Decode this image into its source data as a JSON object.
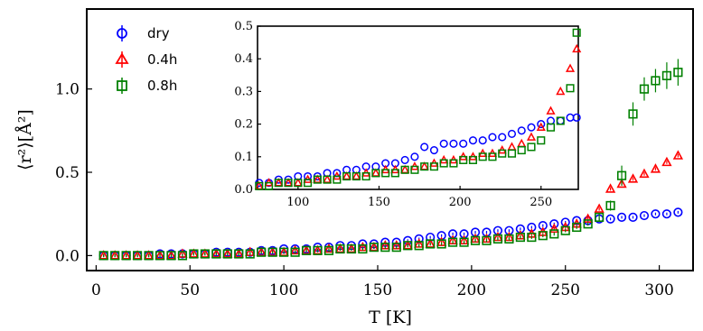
{
  "chart_data": [
    {
      "type": "scatter",
      "xlabel": "T [K]",
      "ylabel": "⟨r²⟩[Å²]",
      "xlim": [
        -5,
        318
      ],
      "ylim": [
        -0.09,
        1.48
      ],
      "xticks": [
        0,
        50,
        100,
        150,
        200,
        250,
        300
      ],
      "yticks": [
        0.0,
        0.5,
        1.0
      ],
      "ytick_labels": [
        "0.0",
        "0.5",
        "1.0"
      ],
      "legend": {
        "placement": "top-left",
        "entries": [
          "dry",
          "0.4h",
          "0.8h"
        ]
      },
      "series": [
        {
          "name": "dry",
          "marker": "circle",
          "color": "#0000ff",
          "x": [
            4,
            10,
            16,
            22,
            28,
            34,
            40,
            46,
            52,
            58,
            64,
            70,
            76,
            82,
            88,
            94,
            100,
            106,
            112,
            118,
            124,
            130,
            136,
            142,
            148,
            154,
            160,
            166,
            172,
            178,
            184,
            190,
            196,
            202,
            208,
            214,
            220,
            226,
            232,
            238,
            244,
            250,
            256,
            262,
            268,
            274,
            280,
            286,
            292,
            298,
            304,
            310
          ],
          "y": [
            0.0,
            0.0,
            0.0,
            0.0,
            0.0,
            0.01,
            0.01,
            0.01,
            0.01,
            0.01,
            0.02,
            0.02,
            0.02,
            0.02,
            0.03,
            0.03,
            0.04,
            0.04,
            0.04,
            0.05,
            0.05,
            0.06,
            0.06,
            0.07,
            0.07,
            0.08,
            0.08,
            0.09,
            0.1,
            0.11,
            0.12,
            0.13,
            0.13,
            0.14,
            0.14,
            0.15,
            0.15,
            0.16,
            0.17,
            0.18,
            0.19,
            0.2,
            0.21,
            0.21,
            0.22,
            0.22,
            0.23,
            0.23,
            0.24,
            0.25,
            0.25,
            0.26
          ],
          "yerr": 0.008
        },
        {
          "name": "0.4h",
          "marker": "triangle",
          "color": "#ff0000",
          "x": [
            4,
            10,
            16,
            22,
            28,
            34,
            40,
            46,
            52,
            58,
            64,
            70,
            76,
            82,
            88,
            94,
            100,
            106,
            112,
            118,
            124,
            130,
            136,
            142,
            148,
            154,
            160,
            166,
            172,
            178,
            184,
            190,
            196,
            202,
            208,
            214,
            220,
            226,
            232,
            238,
            244,
            250,
            256,
            262,
            268,
            274,
            280,
            286,
            292,
            298,
            304,
            310
          ],
          "y": [
            0.0,
            0.0,
            0.0,
            0.0,
            0.0,
            0.0,
            0.0,
            0.01,
            0.01,
            0.01,
            0.01,
            0.01,
            0.01,
            0.02,
            0.02,
            0.02,
            0.02,
            0.03,
            0.03,
            0.03,
            0.04,
            0.04,
            0.04,
            0.05,
            0.05,
            0.06,
            0.06,
            0.06,
            0.07,
            0.07,
            0.08,
            0.09,
            0.09,
            0.1,
            0.1,
            0.11,
            0.11,
            0.12,
            0.13,
            0.14,
            0.16,
            0.17,
            0.19,
            0.22,
            0.28,
            0.4,
            0.43,
            0.46,
            0.49,
            0.52,
            0.56,
            0.6
          ],
          "yerr": 0.01
        },
        {
          "name": "0.8h",
          "marker": "square",
          "color": "#008000",
          "x": [
            4,
            10,
            16,
            22,
            28,
            34,
            40,
            46,
            52,
            58,
            64,
            70,
            76,
            82,
            88,
            94,
            100,
            106,
            112,
            118,
            124,
            130,
            136,
            142,
            148,
            154,
            160,
            166,
            172,
            178,
            184,
            190,
            196,
            202,
            208,
            214,
            220,
            226,
            232,
            238,
            244,
            250,
            256,
            262,
            268,
            274,
            280,
            286,
            292,
            298,
            304,
            310
          ],
          "y": [
            0.0,
            0.0,
            0.0,
            0.0,
            0.0,
            0.0,
            0.0,
            0.0,
            0.01,
            0.01,
            0.01,
            0.01,
            0.01,
            0.01,
            0.02,
            0.02,
            0.02,
            0.02,
            0.03,
            0.03,
            0.03,
            0.04,
            0.04,
            0.04,
            0.05,
            0.05,
            0.05,
            0.06,
            0.06,
            0.07,
            0.07,
            0.08,
            0.08,
            0.09,
            0.09,
            0.1,
            0.1,
            0.11,
            0.11,
            0.12,
            0.13,
            0.15,
            0.17,
            0.19,
            0.23,
            0.3,
            0.48,
            0.85,
            1.0,
            1.05,
            1.08,
            1.1
          ],
          "yerr": [
            0.01,
            0.01,
            0.01,
            0.01,
            0.01,
            0.01,
            0.01,
            0.01,
            0.01,
            0.01,
            0.01,
            0.01,
            0.01,
            0.01,
            0.01,
            0.01,
            0.01,
            0.01,
            0.01,
            0.01,
            0.01,
            0.01,
            0.01,
            0.01,
            0.01,
            0.01,
            0.01,
            0.01,
            0.01,
            0.01,
            0.01,
            0.01,
            0.01,
            0.01,
            0.01,
            0.01,
            0.01,
            0.01,
            0.01,
            0.01,
            0.01,
            0.01,
            0.01,
            0.01,
            0.02,
            0.03,
            0.06,
            0.07,
            0.07,
            0.07,
            0.08,
            0.08
          ]
        }
      ]
    },
    {
      "type": "scatter",
      "xlim": [
        75,
        273
      ],
      "ylim": [
        0.0,
        0.5
      ],
      "xticks": [
        100,
        150,
        200,
        250
      ],
      "yticks": [
        0.0,
        0.1,
        0.2,
        0.3,
        0.4,
        0.5
      ],
      "ytick_labels": [
        "0.0",
        "0.1",
        "0.2",
        "0.3",
        "0.4",
        "0.5"
      ],
      "series": [
        {
          "name": "dry",
          "marker": "circle",
          "color": "#0000ff",
          "x": [
            76,
            82,
            88,
            94,
            100,
            106,
            112,
            118,
            124,
            130,
            136,
            142,
            148,
            154,
            160,
            166,
            172,
            178,
            184,
            190,
            196,
            202,
            208,
            214,
            220,
            226,
            232,
            238,
            244,
            250,
            256,
            262,
            268,
            272
          ],
          "y": [
            0.02,
            0.02,
            0.03,
            0.03,
            0.04,
            0.04,
            0.04,
            0.05,
            0.05,
            0.06,
            0.06,
            0.07,
            0.07,
            0.08,
            0.08,
            0.09,
            0.1,
            0.13,
            0.12,
            0.14,
            0.14,
            0.14,
            0.15,
            0.15,
            0.16,
            0.16,
            0.17,
            0.18,
            0.19,
            0.2,
            0.21,
            0.21,
            0.22,
            0.22
          ]
        },
        {
          "name": "0.4h",
          "marker": "triangle",
          "color": "#ff0000",
          "x": [
            76,
            82,
            88,
            94,
            100,
            106,
            112,
            118,
            124,
            130,
            136,
            142,
            148,
            154,
            160,
            166,
            172,
            178,
            184,
            190,
            196,
            202,
            208,
            214,
            220,
            226,
            232,
            238,
            244,
            250,
            256,
            262,
            268,
            272
          ],
          "y": [
            0.01,
            0.02,
            0.02,
            0.02,
            0.02,
            0.03,
            0.03,
            0.03,
            0.04,
            0.04,
            0.04,
            0.05,
            0.05,
            0.06,
            0.06,
            0.06,
            0.07,
            0.07,
            0.08,
            0.09,
            0.09,
            0.1,
            0.1,
            0.11,
            0.11,
            0.12,
            0.13,
            0.14,
            0.16,
            0.19,
            0.24,
            0.3,
            0.37,
            0.43
          ]
        },
        {
          "name": "0.8h",
          "marker": "square",
          "color": "#008000",
          "x": [
            76,
            82,
            88,
            94,
            100,
            106,
            112,
            118,
            124,
            130,
            136,
            142,
            148,
            154,
            160,
            166,
            172,
            178,
            184,
            190,
            196,
            202,
            208,
            214,
            220,
            226,
            232,
            238,
            244,
            250,
            256,
            262,
            268,
            272
          ],
          "y": [
            0.01,
            0.01,
            0.02,
            0.02,
            0.02,
            0.02,
            0.03,
            0.03,
            0.03,
            0.04,
            0.04,
            0.04,
            0.05,
            0.05,
            0.05,
            0.06,
            0.06,
            0.07,
            0.07,
            0.08,
            0.08,
            0.09,
            0.09,
            0.1,
            0.1,
            0.11,
            0.11,
            0.12,
            0.13,
            0.15,
            0.19,
            0.21,
            0.31,
            0.48
          ]
        }
      ]
    }
  ]
}
